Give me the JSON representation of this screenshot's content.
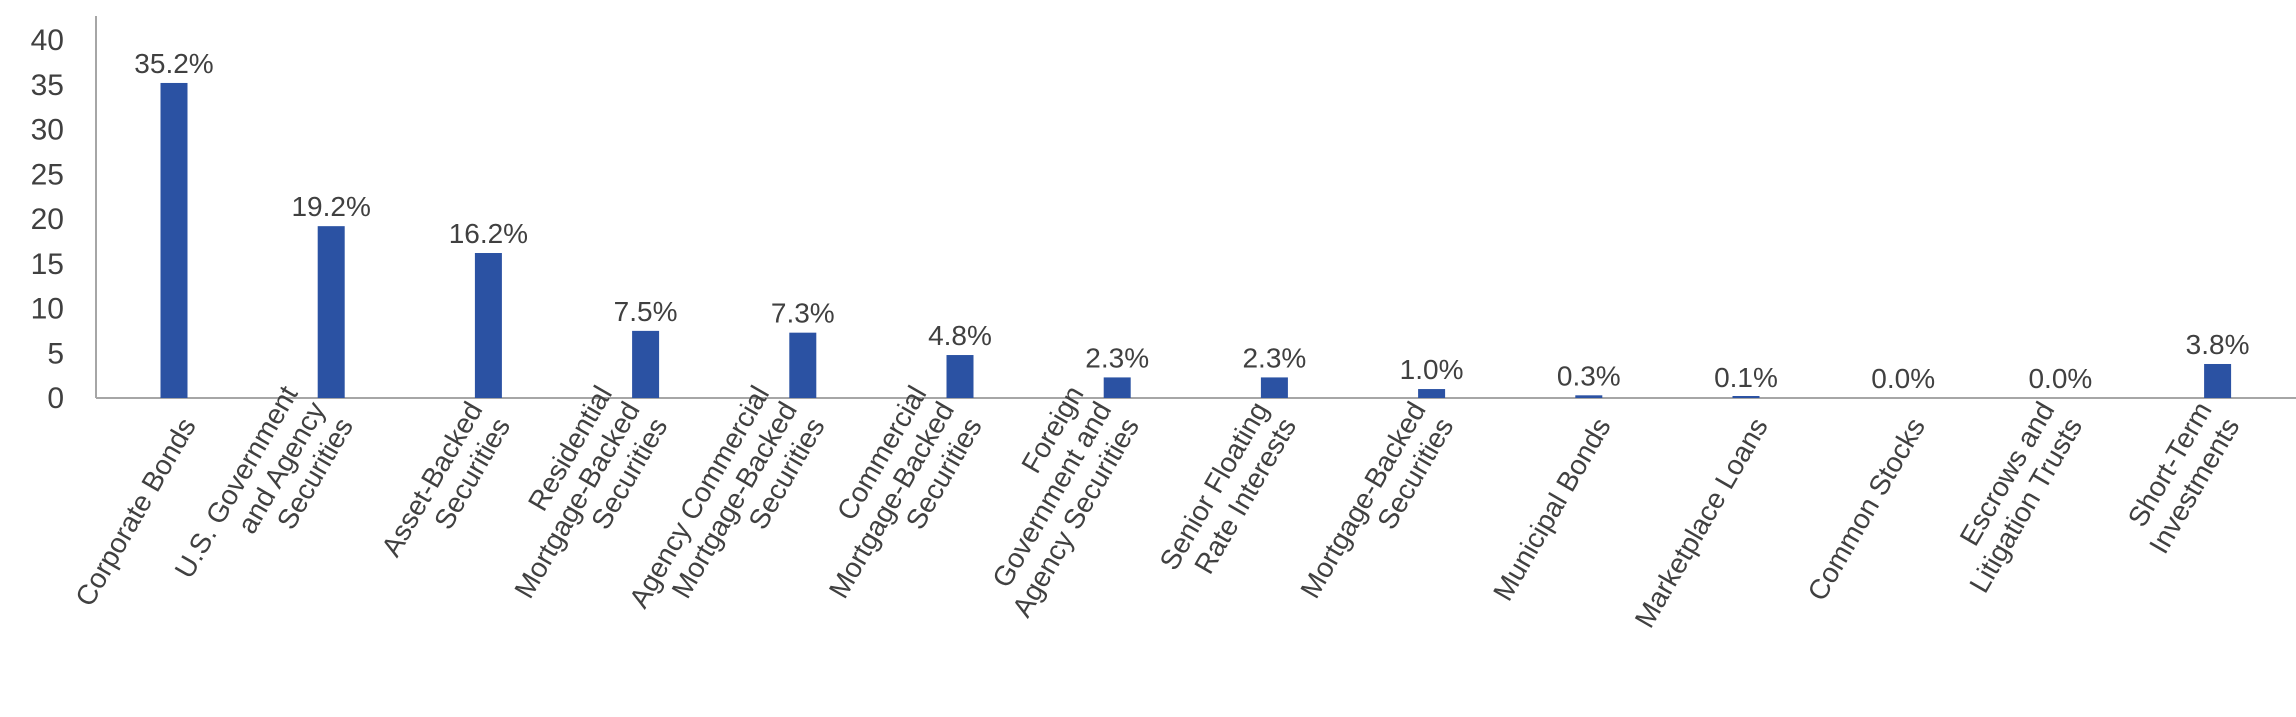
{
  "chart_data": {
    "type": "bar",
    "title": "",
    "xlabel": "",
    "ylabel": "",
    "ylim": [
      0,
      40
    ],
    "yticks": [
      0,
      5,
      10,
      15,
      20,
      25,
      30,
      35,
      40
    ],
    "grid": false,
    "legend": "none",
    "bar_color": "#2b52a3",
    "categories": [
      [
        "Corporate Bonds"
      ],
      [
        "U.S. Government",
        "and Agency",
        "Securities"
      ],
      [
        "Asset-Backed",
        "Securities"
      ],
      [
        "Residential",
        "Mortgage-Backed",
        "Securities"
      ],
      [
        "Agency Commercial",
        "Mortgage-Backed",
        "Securities"
      ],
      [
        "Commercial",
        "Mortgage-Backed",
        "Securities"
      ],
      [
        "Foreign",
        "Government and",
        "Agency Securities"
      ],
      [
        "Senior Floating",
        "Rate Interests"
      ],
      [
        "Mortgage-Backed",
        "Securities"
      ],
      [
        "Municipal Bonds"
      ],
      [
        "Marketplace Loans"
      ],
      [
        "Common Stocks"
      ],
      [
        "Escrows and",
        "Litigation Trusts"
      ],
      [
        "Short-Term",
        "Investments"
      ]
    ],
    "values": [
      35.2,
      19.2,
      16.2,
      7.5,
      7.3,
      4.8,
      2.3,
      2.3,
      1.0,
      0.3,
      0.1,
      0.0,
      0.0,
      3.8
    ],
    "data_labels": [
      "35.2%",
      "19.2%",
      "16.2%",
      "7.5%",
      "7.3%",
      "4.8%",
      "2.3%",
      "2.3%",
      "1.0%",
      "0.3%",
      "0.1%",
      "0.0%",
      "0.0%",
      "3.8%"
    ]
  }
}
